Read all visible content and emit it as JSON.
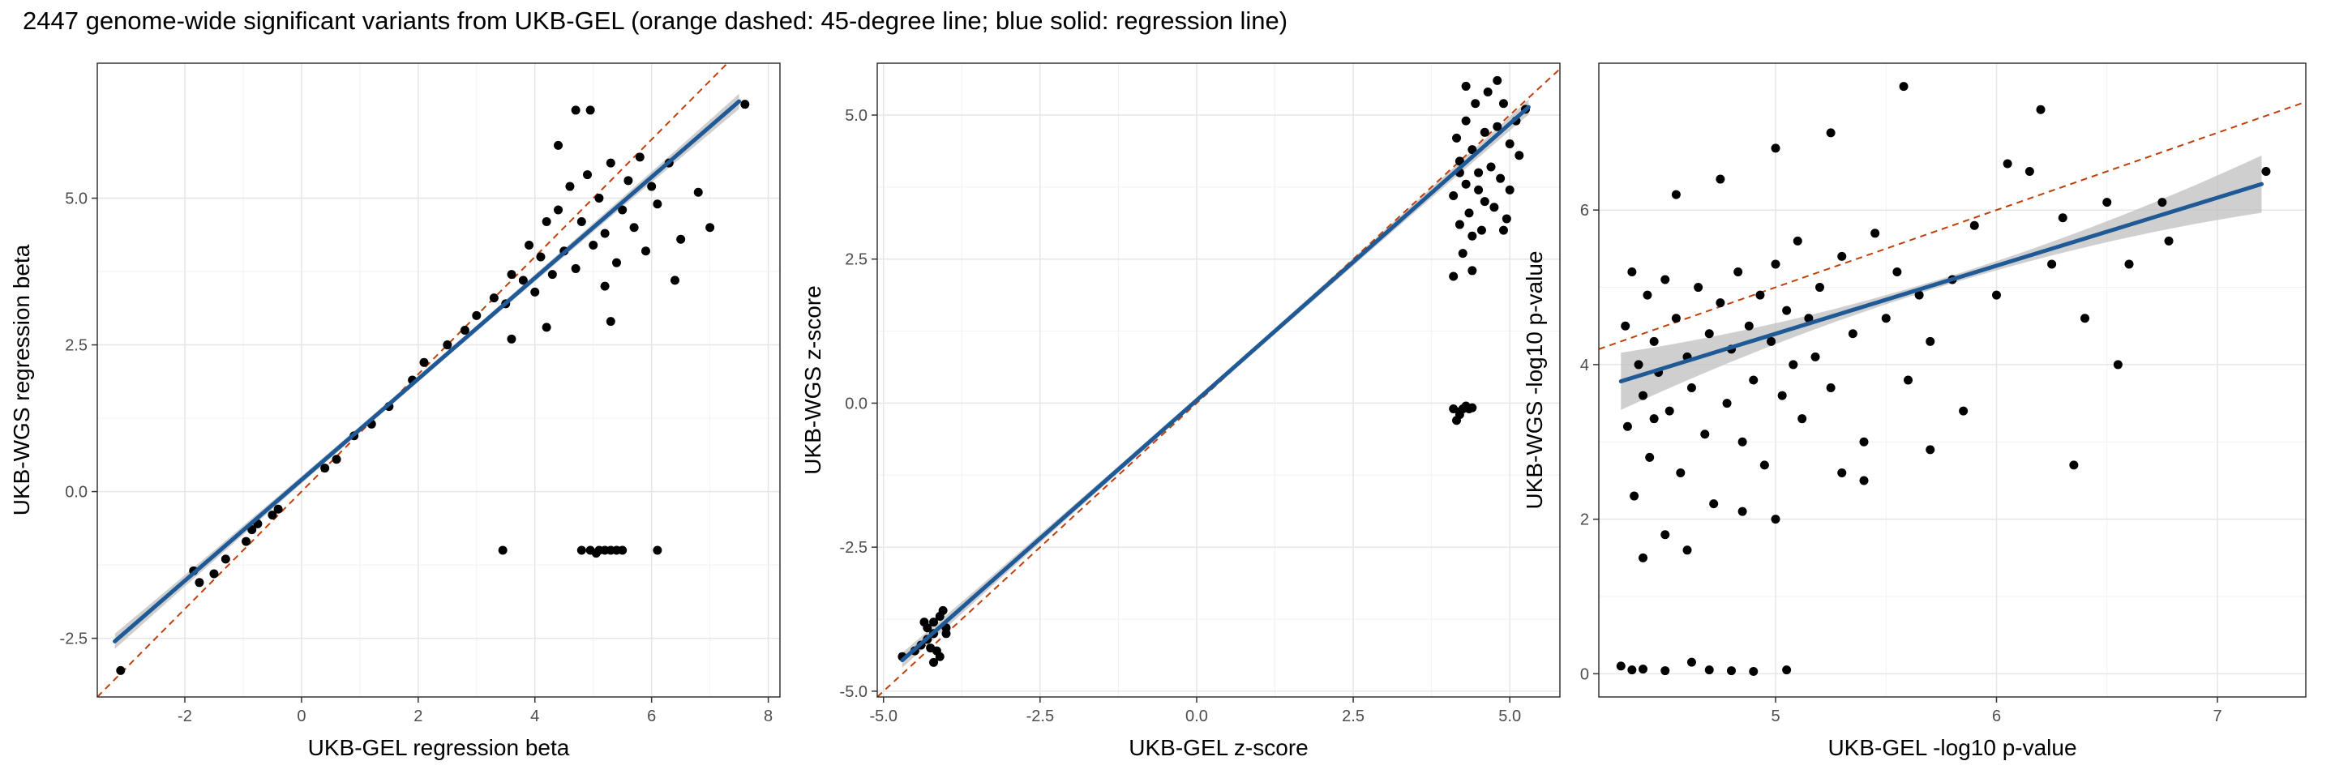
{
  "title": "2447 genome-wide significant variants from UKB-GEL (orange dashed: 45-degree line; blue solid: regression line)",
  "colors": {
    "points": "#000000",
    "regression_line": "#1f5a96",
    "identity_line": "#c0400a",
    "confidence_band": "#bfbfbf",
    "grid_major": "#e6e6e6",
    "grid_minor": "#f2f2f2",
    "panel_border": "#333333"
  },
  "chart_data": [
    {
      "type": "scatter",
      "title": "",
      "xlabel": "UKB-GEL regression beta",
      "ylabel": "UKB-WGS regression beta",
      "xlim": [
        -3.5,
        8.2
      ],
      "ylim": [
        -3.5,
        7.3
      ],
      "xticks": [
        -2,
        0,
        2,
        4,
        6,
        8
      ],
      "xtick_labels": [
        "-2",
        "0",
        "2",
        "4",
        "6",
        "8"
      ],
      "yticks": [
        -2.5,
        0.0,
        2.5,
        5.0
      ],
      "ytick_labels": [
        "-2.5",
        "0.0",
        "2.5",
        "5.0"
      ],
      "grid": true,
      "identity_line": true,
      "regression": {
        "slope": 0.86,
        "intercept": 0.2,
        "x_range": [
          -3.2,
          7.5
        ]
      },
      "points": [
        [
          -3.1,
          -3.05
        ],
        [
          -1.85,
          -1.35
        ],
        [
          -1.75,
          -1.55
        ],
        [
          -1.5,
          -1.4
        ],
        [
          -1.3,
          -1.15
        ],
        [
          -0.95,
          -0.85
        ],
        [
          -0.85,
          -0.65
        ],
        [
          -0.75,
          -0.55
        ],
        [
          -0.5,
          -0.4
        ],
        [
          -0.4,
          -0.3
        ],
        [
          0.4,
          0.4
        ],
        [
          0.6,
          0.55
        ],
        [
          0.9,
          0.95
        ],
        [
          1.2,
          1.15
        ],
        [
          1.5,
          1.45
        ],
        [
          1.9,
          1.9
        ],
        [
          2.1,
          2.2
        ],
        [
          2.5,
          2.5
        ],
        [
          2.8,
          2.75
        ],
        [
          3.0,
          3.0
        ],
        [
          3.3,
          3.3
        ],
        [
          3.5,
          3.2
        ],
        [
          3.6,
          3.7
        ],
        [
          3.8,
          3.6
        ],
        [
          3.9,
          4.2
        ],
        [
          4.0,
          3.4
        ],
        [
          4.1,
          4.0
        ],
        [
          4.2,
          4.6
        ],
        [
          4.3,
          3.7
        ],
        [
          4.4,
          4.8
        ],
        [
          4.5,
          4.1
        ],
        [
          4.6,
          5.2
        ],
        [
          4.7,
          3.8
        ],
        [
          4.8,
          4.6
        ],
        [
          4.9,
          5.4
        ],
        [
          5.0,
          4.2
        ],
        [
          5.1,
          5.0
        ],
        [
          5.2,
          4.4
        ],
        [
          5.3,
          5.6
        ],
        [
          5.4,
          3.9
        ],
        [
          5.5,
          4.8
        ],
        [
          5.6,
          5.3
        ],
        [
          5.7,
          4.5
        ],
        [
          5.8,
          5.7
        ],
        [
          5.9,
          4.1
        ],
        [
          6.0,
          5.2
        ],
        [
          6.1,
          4.9
        ],
        [
          6.3,
          5.6
        ],
        [
          6.5,
          4.3
        ],
        [
          6.8,
          5.1
        ],
        [
          7.0,
          4.5
        ],
        [
          7.6,
          6.6
        ],
        [
          4.7,
          6.5
        ],
        [
          4.95,
          6.5
        ],
        [
          4.4,
          5.9
        ],
        [
          5.2,
          3.5
        ],
        [
          6.4,
          3.6
        ],
        [
          5.3,
          2.9
        ],
        [
          4.2,
          2.8
        ],
        [
          3.6,
          2.6
        ],
        [
          3.45,
          -1.0
        ],
        [
          4.8,
          -1.0
        ],
        [
          4.95,
          -1.0
        ],
        [
          5.05,
          -1.05
        ],
        [
          5.1,
          -1.0
        ],
        [
          5.2,
          -1.0
        ],
        [
          5.3,
          -1.0
        ],
        [
          5.4,
          -1.0
        ],
        [
          5.5,
          -1.0
        ],
        [
          6.1,
          -1.0
        ]
      ]
    },
    {
      "type": "scatter",
      "title": "",
      "xlabel": "UKB-GEL z-score",
      "ylabel": "UKB-WGS z-score",
      "xlim": [
        -5.1,
        5.8
      ],
      "ylim": [
        -5.1,
        5.9
      ],
      "xticks": [
        -5.0,
        -2.5,
        0.0,
        2.5,
        5.0
      ],
      "xtick_labels": [
        "-5.0",
        "-2.5",
        "0.0",
        "2.5",
        "5.0"
      ],
      "yticks": [
        -5.0,
        -2.5,
        0.0,
        2.5,
        5.0
      ],
      "ytick_labels": [
        "-5.0",
        "-2.5",
        "0.0",
        "2.5",
        "5.0"
      ],
      "grid": true,
      "identity_line": true,
      "regression": {
        "slope": 0.96,
        "intercept": 0.05,
        "x_range": [
          -4.7,
          5.3
        ]
      },
      "points": [
        [
          -4.7,
          -4.4
        ],
        [
          -4.5,
          -4.3
        ],
        [
          -4.4,
          -4.2
        ],
        [
          -4.3,
          -4.1
        ],
        [
          -4.3,
          -3.9
        ],
        [
          -4.2,
          -4.0
        ],
        [
          -4.2,
          -3.8
        ],
        [
          -4.15,
          -4.3
        ],
        [
          -4.1,
          -3.7
        ],
        [
          -4.1,
          -4.4
        ],
        [
          -4.05,
          -3.6
        ],
        [
          -4.0,
          -4.0
        ],
        [
          -4.0,
          -3.9
        ],
        [
          -4.2,
          -4.5
        ],
        [
          -4.35,
          -3.8
        ],
        [
          -4.25,
          -4.25
        ],
        [
          4.1,
          2.2
        ],
        [
          4.1,
          3.6
        ],
        [
          4.15,
          4.6
        ],
        [
          4.2,
          3.1
        ],
        [
          4.2,
          4.2
        ],
        [
          4.25,
          2.6
        ],
        [
          4.3,
          3.8
        ],
        [
          4.3,
          4.9
        ],
        [
          4.35,
          3.3
        ],
        [
          4.4,
          4.4
        ],
        [
          4.4,
          2.9
        ],
        [
          4.45,
          5.2
        ],
        [
          4.5,
          3.7
        ],
        [
          4.5,
          4.0
        ],
        [
          4.55,
          3.0
        ],
        [
          4.6,
          4.7
        ],
        [
          4.6,
          3.5
        ],
        [
          4.65,
          5.4
        ],
        [
          4.7,
          4.1
        ],
        [
          4.75,
          3.4
        ],
        [
          4.8,
          4.8
        ],
        [
          4.85,
          3.9
        ],
        [
          4.9,
          5.2
        ],
        [
          4.95,
          3.2
        ],
        [
          5.0,
          4.5
        ],
        [
          5.0,
          3.7
        ],
        [
          5.1,
          4.9
        ],
        [
          5.15,
          4.3
        ],
        [
          5.25,
          5.1
        ],
        [
          4.8,
          5.6
        ],
        [
          4.3,
          5.5
        ],
        [
          4.4,
          2.3
        ],
        [
          4.9,
          3.0
        ],
        [
          4.2,
          4.0
        ],
        [
          4.1,
          -0.1
        ],
        [
          4.15,
          -0.3
        ],
        [
          4.2,
          -0.15
        ],
        [
          4.25,
          -0.1
        ],
        [
          4.3,
          -0.05
        ],
        [
          4.2,
          -0.2
        ],
        [
          4.35,
          -0.1
        ],
        [
          4.4,
          -0.08
        ]
      ]
    },
    {
      "type": "scatter",
      "title": "",
      "xlabel": "UKB-GEL -log10 p-value",
      "ylabel": "UKB-WGS -log10 p-value",
      "xlim": [
        4.2,
        7.4
      ],
      "ylim": [
        -0.3,
        7.9
      ],
      "xticks": [
        5,
        6,
        7
      ],
      "xtick_labels": [
        "5",
        "6",
        "7"
      ],
      "yticks": [
        0,
        2,
        4,
        6
      ],
      "ytick_labels": [
        "0",
        "2",
        "4",
        "6"
      ],
      "grid": true,
      "identity_line": true,
      "regression": {
        "slope": 0.88,
        "intercept": 0.0,
        "x_range": [
          4.3,
          7.2
        ]
      },
      "points": [
        [
          4.32,
          4.5
        ],
        [
          4.33,
          3.2
        ],
        [
          4.35,
          5.2
        ],
        [
          4.36,
          2.3
        ],
        [
          4.38,
          4.0
        ],
        [
          4.4,
          3.6
        ],
        [
          4.42,
          4.9
        ],
        [
          4.43,
          2.8
        ],
        [
          4.45,
          4.3
        ],
        [
          4.47,
          3.9
        ],
        [
          4.5,
          5.1
        ],
        [
          4.52,
          3.4
        ],
        [
          4.55,
          4.6
        ],
        [
          4.57,
          2.6
        ],
        [
          4.6,
          4.1
        ],
        [
          4.62,
          3.7
        ],
        [
          4.65,
          5.0
        ],
        [
          4.68,
          3.1
        ],
        [
          4.7,
          4.4
        ],
        [
          4.72,
          2.2
        ],
        [
          4.75,
          4.8
        ],
        [
          4.78,
          3.5
        ],
        [
          4.8,
          4.2
        ],
        [
          4.83,
          5.2
        ],
        [
          4.85,
          3.0
        ],
        [
          4.88,
          4.5
        ],
        [
          4.9,
          3.8
        ],
        [
          4.93,
          4.9
        ],
        [
          4.95,
          2.7
        ],
        [
          4.98,
          4.3
        ],
        [
          5.0,
          5.3
        ],
        [
          5.03,
          3.6
        ],
        [
          5.05,
          4.7
        ],
        [
          5.08,
          4.0
        ],
        [
          5.1,
          5.6
        ],
        [
          5.12,
          3.3
        ],
        [
          5.15,
          4.6
        ],
        [
          5.18,
          4.1
        ],
        [
          5.2,
          5.0
        ],
        [
          5.25,
          3.7
        ],
        [
          5.3,
          5.4
        ],
        [
          5.35,
          4.4
        ],
        [
          5.4,
          3.0
        ],
        [
          5.45,
          5.7
        ],
        [
          5.5,
          4.6
        ],
        [
          5.55,
          5.2
        ],
        [
          5.6,
          3.8
        ],
        [
          5.58,
          7.6
        ],
        [
          5.65,
          4.9
        ],
        [
          5.7,
          4.3
        ],
        [
          5.8,
          5.1
        ],
        [
          5.85,
          3.4
        ],
        [
          5.9,
          5.8
        ],
        [
          6.0,
          4.9
        ],
        [
          6.05,
          6.6
        ],
        [
          6.15,
          6.5
        ],
        [
          6.2,
          7.3
        ],
        [
          6.25,
          5.3
        ],
        [
          6.3,
          5.9
        ],
        [
          6.4,
          4.6
        ],
        [
          6.35,
          2.7
        ],
        [
          6.5,
          6.1
        ],
        [
          6.55,
          4.0
        ],
        [
          6.6,
          5.3
        ],
        [
          6.75,
          6.1
        ],
        [
          6.78,
          5.6
        ],
        [
          7.22,
          6.5
        ],
        [
          5.3,
          2.6
        ],
        [
          5.4,
          2.5
        ],
        [
          5.7,
          2.9
        ],
        [
          5.0,
          6.8
        ],
        [
          5.25,
          7.0
        ],
        [
          4.75,
          6.4
        ],
        [
          4.55,
          6.2
        ],
        [
          4.4,
          1.5
        ],
        [
          4.5,
          1.8
        ],
        [
          4.6,
          1.6
        ],
        [
          4.85,
          2.1
        ],
        [
          5.0,
          2.0
        ],
        [
          4.45,
          3.3
        ],
        [
          4.3,
          0.1
        ],
        [
          4.35,
          0.05
        ],
        [
          4.4,
          0.06
        ],
        [
          4.5,
          0.04
        ],
        [
          4.62,
          0.15
        ],
        [
          4.7,
          0.05
        ],
        [
          4.8,
          0.04
        ],
        [
          4.9,
          0.03
        ],
        [
          5.05,
          0.05
        ]
      ]
    }
  ]
}
